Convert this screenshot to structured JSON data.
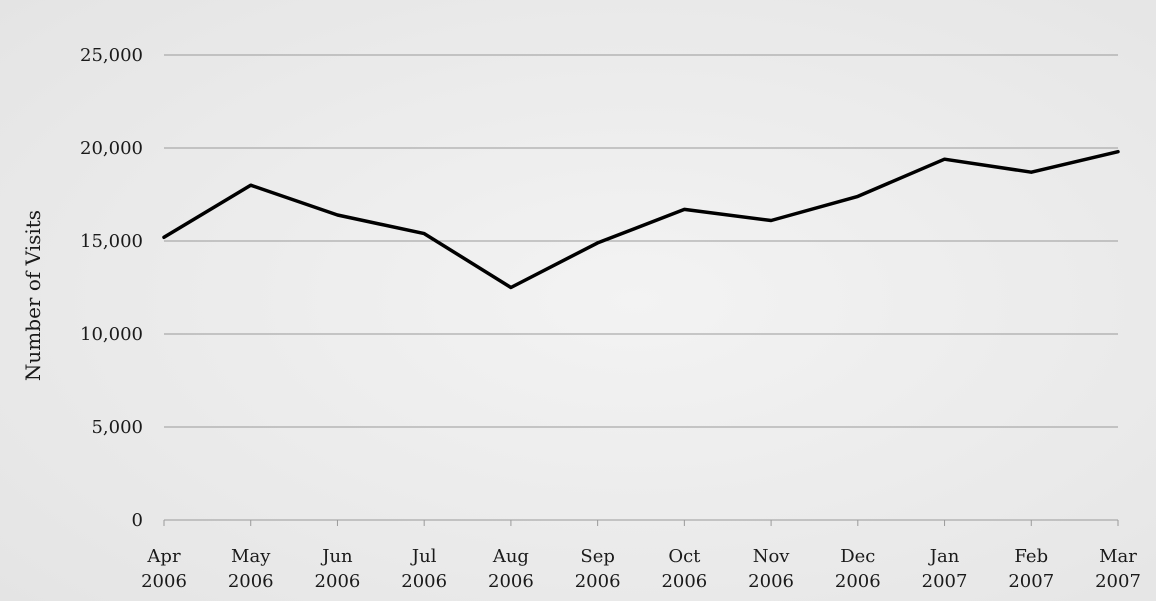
{
  "chart_data": {
    "type": "line",
    "title": "",
    "xlabel": "",
    "ylabel": "Number of Visits",
    "categories": [
      [
        "Apr",
        "2006"
      ],
      [
        "May",
        "2006"
      ],
      [
        "Jun",
        "2006"
      ],
      [
        "Jul",
        "2006"
      ],
      [
        "Aug",
        "2006"
      ],
      [
        "Sep",
        "2006"
      ],
      [
        "Oct",
        "2006"
      ],
      [
        "Nov",
        "2006"
      ],
      [
        "Dec",
        "2006"
      ],
      [
        "Jan",
        "2007"
      ],
      [
        "Feb",
        "2007"
      ],
      [
        "Mar",
        "2007"
      ]
    ],
    "series": [
      {
        "values": [
          15200,
          18000,
          16400,
          15400,
          12500,
          14900,
          16700,
          16100,
          17400,
          19400,
          18700,
          19800
        ]
      }
    ],
    "ylim": [
      0,
      25000
    ],
    "yticks": [
      0,
      5000,
      10000,
      15000,
      20000,
      25000
    ],
    "ytick_labels": [
      "0",
      "5,000",
      "10,000",
      "15,000",
      "20,000",
      "25,000"
    ],
    "grid": "horizontal",
    "legend": "none",
    "colors": {
      "line": "#000000",
      "grid": "#9a9a9a",
      "background_center": "#f2f2f2",
      "background_edge": "#e6e6e6"
    }
  }
}
